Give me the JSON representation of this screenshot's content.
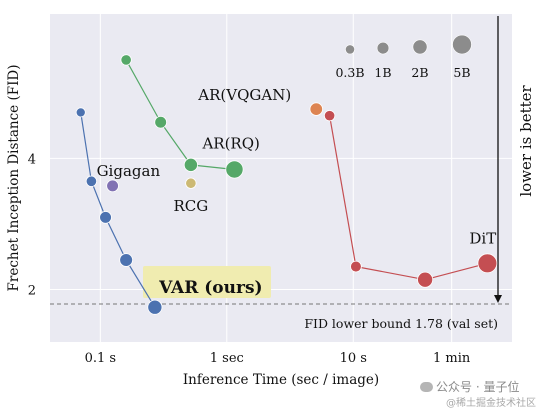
{
  "chart_data": {
    "type": "scatter",
    "title": "",
    "xlabel": "Inference Time (sec / image)",
    "ylabel": "Frechet Inception Distance (FID)",
    "x_scale": "log",
    "xlim": [
      0.04,
      180
    ],
    "ylim": [
      1.2,
      6.2
    ],
    "x_ticks": [
      {
        "value": 0.1,
        "label": "0.1 s"
      },
      {
        "value": 1,
        "label": "1 sec"
      },
      {
        "value": 10,
        "label": "10 s"
      },
      {
        "value": 60,
        "label": "1 min"
      }
    ],
    "y_ticks": [
      {
        "value": 2,
        "label": "2"
      },
      {
        "value": 4,
        "label": "4"
      }
    ],
    "grid": true,
    "background": "#eaeaf2",
    "reference_line": {
      "value": 1.78,
      "label": "FID lower bound 1.78 (val set)"
    },
    "side_label": "lower is better",
    "size_legend": {
      "placement": "top-right",
      "entries": [
        {
          "label": "0.3B",
          "params_b": 0.3
        },
        {
          "label": "1B",
          "params_b": 1
        },
        {
          "label": "2B",
          "params_b": 2
        },
        {
          "label": "5B",
          "params_b": 5
        }
      ]
    },
    "series": [
      {
        "name": "VAR (ours)",
        "color": "#4c72b0",
        "line": true,
        "label_highlight": "#f0ecb0",
        "points": [
          {
            "x": 0.07,
            "y": 4.7,
            "params_b": 0.3
          },
          {
            "x": 0.085,
            "y": 3.65,
            "params_b": 0.6
          },
          {
            "x": 0.11,
            "y": 3.1,
            "params_b": 1.0
          },
          {
            "x": 0.16,
            "y": 2.45,
            "params_b": 1.4
          },
          {
            "x": 0.27,
            "y": 1.73,
            "params_b": 2.0
          }
        ]
      },
      {
        "name": "AR(RQ)",
        "color": "#55a868",
        "line": true,
        "points": [
          {
            "x": 0.16,
            "y": 5.5,
            "params_b": 0.6
          },
          {
            "x": 0.3,
            "y": 4.55,
            "params_b": 1.0
          },
          {
            "x": 0.52,
            "y": 3.9,
            "params_b": 1.6
          },
          {
            "x": 1.15,
            "y": 3.83,
            "params_b": 3.8
          }
        ]
      },
      {
        "name": "AR(VQGAN)",
        "color": "#c44e52",
        "line": true,
        "points": [
          {
            "x": 6.5,
            "y": 4.65,
            "params_b": 0.6
          },
          {
            "x": 10.5,
            "y": 2.35,
            "params_b": 0.7
          },
          {
            "x": 37,
            "y": 2.15,
            "params_b": 2.5
          },
          {
            "x": 115,
            "y": 2.4,
            "params_b": 5.0
          }
        ]
      },
      {
        "name": "AR(VQGAN) highlight",
        "color": "#dd8452",
        "line": false,
        "points": [
          {
            "x": 5.1,
            "y": 4.75,
            "params_b": 1.3
          }
        ]
      },
      {
        "name": "Gigagan",
        "color": "#8172b3",
        "line": false,
        "points": [
          {
            "x": 0.125,
            "y": 3.58,
            "params_b": 1.0
          }
        ]
      },
      {
        "name": "RCG",
        "color": "#ccb974",
        "line": false,
        "points": [
          {
            "x": 0.52,
            "y": 3.62,
            "params_b": 0.6
          }
        ]
      }
    ],
    "annotations": [
      {
        "text": "VAR (ours)",
        "series": "VAR (ours)",
        "bold": true
      },
      {
        "text": "Gigagan",
        "series": "Gigagan"
      },
      {
        "text": "RCG",
        "series": "RCG"
      },
      {
        "text": "AR(RQ)",
        "series": "AR(RQ)"
      },
      {
        "text": "AR(VQGAN)",
        "series": "AR(VQGAN)"
      },
      {
        "text": "DiT",
        "series": "AR(VQGAN)"
      }
    ]
  },
  "watermark": {
    "line1": "公众号 · 量子位",
    "line2": "@稀土掘金技术社区"
  }
}
